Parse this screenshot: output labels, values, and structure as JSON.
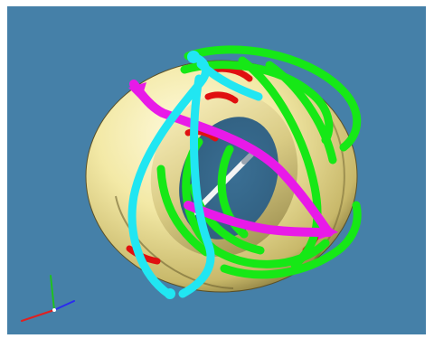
{
  "scene": {
    "background_color": "#4580a8",
    "surface_color": "#f3e9a6",
    "tube_colors": {
      "green": "#16e816",
      "magenta": "#e81ae8",
      "cyan": "#21e6f2",
      "red": "#e01010",
      "axis_white": "#f4f4f4"
    },
    "axis_triad_colors": [
      "#e02020",
      "#2a2af0",
      "#20c020"
    ]
  }
}
